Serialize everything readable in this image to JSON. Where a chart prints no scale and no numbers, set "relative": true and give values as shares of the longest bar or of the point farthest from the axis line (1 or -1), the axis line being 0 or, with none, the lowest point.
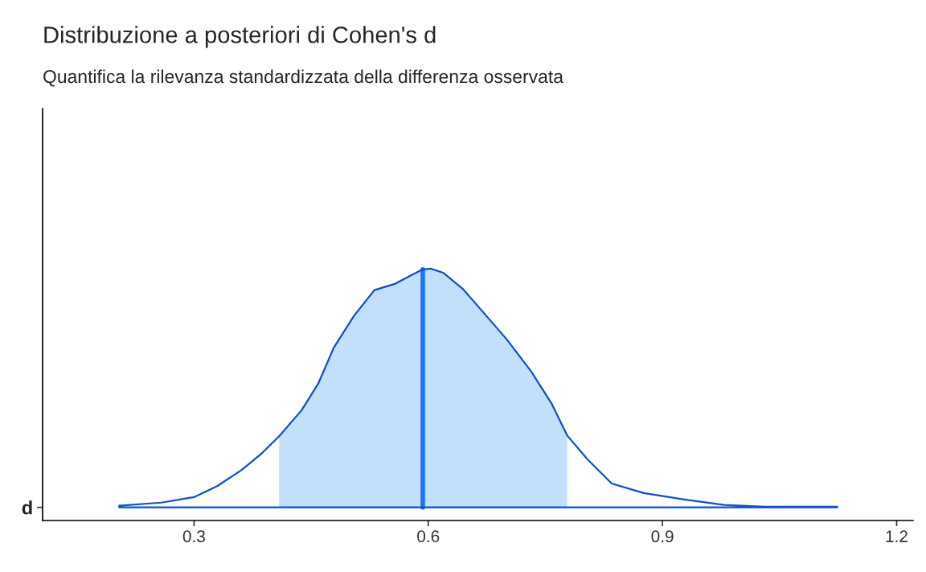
{
  "chart_data": {
    "type": "area",
    "title": "Distribuzione a posteriori di Cohen's d",
    "subtitle": "Quantifica la rilevanza standardizzata della differenza osservata",
    "relative": true,
    "xlim": [
      0.106,
      1.221
    ],
    "xticks": [
      0.3,
      0.6,
      0.9,
      1.2
    ],
    "annotations": [
      "d"
    ],
    "legend": false,
    "grid": false,
    "series": [
      {
        "color": "#c2dffc",
        "x": [
          0.409,
          0.438,
          0.459,
          0.479,
          0.505,
          0.531,
          0.557,
          0.577,
          0.593,
          0.603,
          0.619,
          0.644,
          0.67,
          0.701,
          0.732,
          0.758,
          0.778
        ],
        "values": [
          0.298,
          0.408,
          0.518,
          0.669,
          0.803,
          0.91,
          0.936,
          0.97,
          0.997,
          1.0,
          0.983,
          0.916,
          0.819,
          0.702,
          0.569,
          0.435,
          0.301
        ]
      },
      {
        "type": "line",
        "color": "#1e6ff5",
        "x": [
          0.593,
          0.593
        ],
        "values": [
          0,
          0.997
        ]
      },
      {
        "type": "line",
        "color": "#0f4fc8",
        "x": [
          0.204,
          0.258,
          0.3,
          0.33,
          0.361,
          0.387,
          0.409,
          0.438,
          0.459,
          0.479,
          0.505,
          0.531,
          0.557,
          0.577,
          0.593,
          0.603,
          0.619,
          0.644,
          0.67,
          0.701,
          0.732,
          0.758,
          0.778,
          0.804,
          0.835,
          0.876,
          0.928,
          0.979,
          1.031,
          1.124
        ],
        "values": [
          0.007,
          0.02,
          0.043,
          0.09,
          0.157,
          0.227,
          0.298,
          0.408,
          0.518,
          0.669,
          0.803,
          0.91,
          0.936,
          0.97,
          0.997,
          1.0,
          0.983,
          0.916,
          0.819,
          0.702,
          0.569,
          0.435,
          0.301,
          0.201,
          0.1,
          0.06,
          0.033,
          0.01,
          0.003,
          0.003
        ]
      }
    ]
  }
}
